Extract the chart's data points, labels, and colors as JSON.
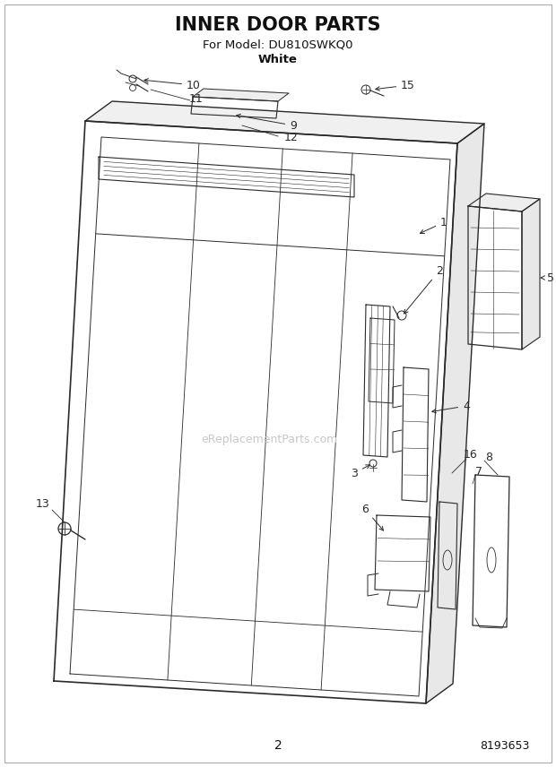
{
  "title": "INNER DOOR PARTS",
  "subtitle1": "For Model: DU810SWKQ0",
  "subtitle2": "White",
  "page_num": "2",
  "part_num": "8193653",
  "bg_color": "#ffffff",
  "line_color": "#2a2a2a",
  "watermark": "eReplacementParts.com",
  "figsize": [
    6.2,
    8.56
  ],
  "dpi": 100
}
